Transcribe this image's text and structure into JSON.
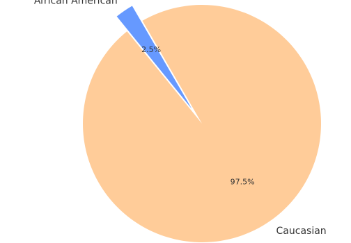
{
  "chart_data": {
    "type": "pie",
    "categories": [
      "African American",
      "Caucasian"
    ],
    "values": [
      2.5,
      97.5
    ],
    "value_labels": [
      "2.5%",
      "97.5%"
    ],
    "colors": [
      "#6699ff",
      "#ffcc99"
    ],
    "exploded": [
      "African American"
    ],
    "title": "",
    "legend": "none"
  }
}
